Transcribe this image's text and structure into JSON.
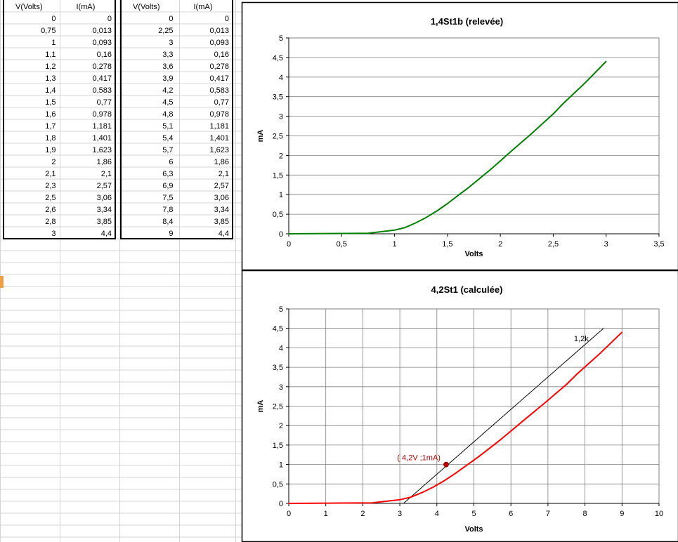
{
  "colors": {
    "gridline": "#d4d4d4",
    "cell_selection": "#f0a040",
    "series_relevee": "#008000",
    "series_calculee": "#ff0000",
    "load_line": "#000000",
    "operating_point": "#c00000",
    "operating_label": "#c00000"
  },
  "table_left": {
    "headers": [
      "V(Volts)",
      "I(mA)"
    ],
    "rows": [
      [
        "0",
        "0"
      ],
      [
        "0,75",
        "0,013"
      ],
      [
        "1",
        "0,093"
      ],
      [
        "1,1",
        "0,16"
      ],
      [
        "1,2",
        "0,278"
      ],
      [
        "1,3",
        "0,417"
      ],
      [
        "1,4",
        "0,583"
      ],
      [
        "1,5",
        "0,77"
      ],
      [
        "1,6",
        "0,978"
      ],
      [
        "1,7",
        "1,181"
      ],
      [
        "1,8",
        "1,401"
      ],
      [
        "1,9",
        "1,623"
      ],
      [
        "2",
        "1,86"
      ],
      [
        "2,1",
        "2,1"
      ],
      [
        "2,3",
        "2,57"
      ],
      [
        "2,5",
        "3,06"
      ],
      [
        "2,6",
        "3,34"
      ],
      [
        "2,8",
        "3,85"
      ],
      [
        "3",
        "4,4"
      ]
    ]
  },
  "table_right": {
    "headers": [
      "V(Volts)",
      "I(mA)"
    ],
    "rows": [
      [
        "0",
        "0"
      ],
      [
        "2,25",
        "0,013"
      ],
      [
        "3",
        "0,093"
      ],
      [
        "3,3",
        "0,16"
      ],
      [
        "3,6",
        "0,278"
      ],
      [
        "3,9",
        "0,417"
      ],
      [
        "4,2",
        "0,583"
      ],
      [
        "4,5",
        "0,77"
      ],
      [
        "4,8",
        "0,978"
      ],
      [
        "5,1",
        "1,181"
      ],
      [
        "5,4",
        "1,401"
      ],
      [
        "5,7",
        "1,623"
      ],
      [
        "6",
        "1,86"
      ],
      [
        "6,3",
        "2,1"
      ],
      [
        "6,9",
        "2,57"
      ],
      [
        "7,5",
        "3,06"
      ],
      [
        "7,8",
        "3,34"
      ],
      [
        "8,4",
        "3,85"
      ],
      [
        "9",
        "4,4"
      ]
    ]
  },
  "chart_data": [
    {
      "type": "line",
      "title": "1,4St1b (relevée)",
      "xlabel": "Volts",
      "ylabel": "mA",
      "xlim": [
        0,
        3.5
      ],
      "ylim": [
        0,
        5
      ],
      "x_ticks": [
        "0",
        "0,5",
        "1",
        "1,5",
        "2",
        "2,5",
        "3",
        "3,5"
      ],
      "y_ticks": [
        "0",
        "0,5",
        "1",
        "1,5",
        "2",
        "2,5",
        "3",
        "3,5",
        "4",
        "4,5",
        "5"
      ],
      "grid": "horizontal",
      "legend": "none",
      "series": [
        {
          "x": [
            0,
            0.75,
            1,
            1.1,
            1.2,
            1.3,
            1.4,
            1.5,
            1.6,
            1.7,
            1.8,
            1.9,
            2,
            2.1,
            2.3,
            2.5,
            2.6,
            2.8,
            3
          ],
          "y": [
            0,
            0.013,
            0.093,
            0.16,
            0.278,
            0.417,
            0.583,
            0.77,
            0.978,
            1.181,
            1.401,
            1.623,
            1.86,
            2.1,
            2.57,
            3.06,
            3.34,
            3.85,
            4.4
          ],
          "color": "#008000"
        }
      ]
    },
    {
      "type": "line",
      "title": "4,2St1 (calculée)",
      "xlabel": "Volts",
      "ylabel": "mA",
      "xlim": [
        0,
        10
      ],
      "ylim": [
        0,
        5
      ],
      "x_ticks": [
        "0",
        "1",
        "2",
        "3",
        "4",
        "5",
        "6",
        "7",
        "8",
        "9",
        "10"
      ],
      "y_ticks": [
        "0",
        "0,5",
        "1",
        "1,5",
        "2",
        "2,5",
        "3",
        "3,5",
        "4",
        "4,5",
        "5"
      ],
      "grid": "both",
      "legend": "none",
      "series": [
        {
          "x": [
            0,
            2.25,
            3,
            3.3,
            3.6,
            3.9,
            4.2,
            4.5,
            4.8,
            5.1,
            5.4,
            5.7,
            6,
            6.3,
            6.9,
            7.5,
            7.8,
            8.4,
            9
          ],
          "y": [
            0,
            0.013,
            0.093,
            0.16,
            0.278,
            0.417,
            0.583,
            0.77,
            0.978,
            1.181,
            1.401,
            1.623,
            1.86,
            2.1,
            2.57,
            3.06,
            3.34,
            3.85,
            4.4
          ],
          "color": "#ff0000"
        }
      ],
      "load_line": {
        "x": [
          3.1,
          8.5
        ],
        "y": [
          0,
          4.5
        ],
        "color": "#000000"
      },
      "annotations": [
        {
          "text": "1,2k",
          "x": 7.9,
          "y": 4.17
        },
        {
          "text": "( 4,2V ;1mA)",
          "x": 4.2,
          "y": 1,
          "point_x": 4.25,
          "point_y": 1
        }
      ]
    }
  ]
}
